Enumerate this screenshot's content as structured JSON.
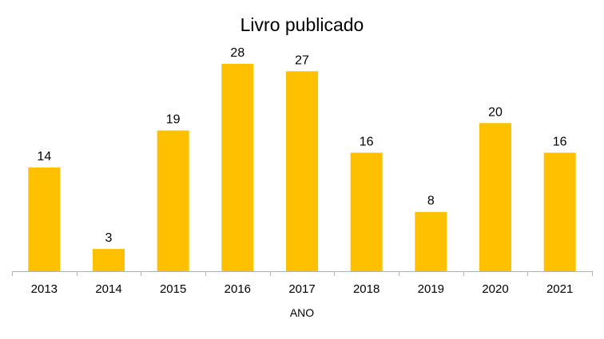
{
  "chart_data": {
    "type": "bar",
    "title": "Livro publicado",
    "xlabel": "ANO",
    "ylabel": "",
    "categories": [
      "2013",
      "2014",
      "2015",
      "2016",
      "2017",
      "2018",
      "2019",
      "2020",
      "2021"
    ],
    "values": [
      14,
      3,
      19,
      28,
      27,
      16,
      8,
      20,
      16
    ],
    "ylim": [
      0,
      28
    ],
    "grid": false,
    "legend": "none",
    "data_labels": true,
    "bar_color": "#FFC000",
    "axis_color": "#B3B3B3"
  }
}
